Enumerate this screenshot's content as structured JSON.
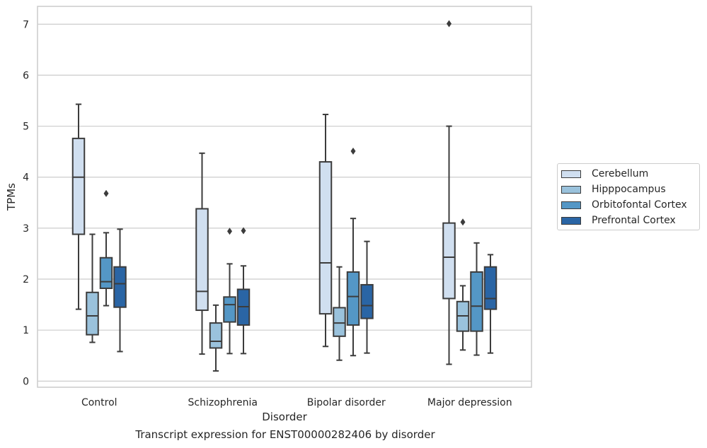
{
  "chart_data": {
    "type": "box",
    "xlabel": "Disorder",
    "ylabel": "TPMs",
    "categories": [
      "Control",
      "Schizophrenia",
      "Bipolar disorder",
      "Major depression"
    ],
    "ylim": [
      -0.12,
      7.35
    ],
    "yticks": [
      0,
      1,
      2,
      3,
      4,
      5,
      6,
      7
    ],
    "grid": true,
    "legend_position": "right",
    "series": [
      {
        "name": "Cerebellum",
        "color": "#d0dff0",
        "boxes": [
          {
            "whislo": 1.41,
            "q1": 2.88,
            "med": 4.0,
            "q3": 4.76,
            "whishi": 5.43,
            "fliers": []
          },
          {
            "whislo": 0.53,
            "q1": 1.39,
            "med": 1.76,
            "q3": 3.38,
            "whishi": 4.47,
            "fliers": []
          },
          {
            "whislo": 0.68,
            "q1": 1.32,
            "med": 2.32,
            "q3": 4.3,
            "whishi": 5.23,
            "fliers": []
          },
          {
            "whislo": 0.33,
            "q1": 1.62,
            "med": 2.43,
            "q3": 3.1,
            "whishi": 5.0,
            "fliers": [
              7.01
            ]
          }
        ]
      },
      {
        "name": "Hipppocampus",
        "color": "#9ac2dc",
        "boxes": [
          {
            "whislo": 0.76,
            "q1": 0.91,
            "med": 1.28,
            "q3": 1.74,
            "whishi": 2.88,
            "fliers": []
          },
          {
            "whislo": 0.2,
            "q1": 0.65,
            "med": 0.78,
            "q3": 1.14,
            "whishi": 1.49,
            "fliers": []
          },
          {
            "whislo": 0.41,
            "q1": 0.88,
            "med": 1.14,
            "q3": 1.44,
            "whishi": 2.24,
            "fliers": []
          },
          {
            "whislo": 0.61,
            "q1": 0.98,
            "med": 1.28,
            "q3": 1.56,
            "whishi": 1.87,
            "fliers": [
              3.12
            ]
          }
        ]
      },
      {
        "name": "Orbitofontal Cortex",
        "color": "#5497c6",
        "boxes": [
          {
            "whislo": 1.48,
            "q1": 1.82,
            "med": 1.95,
            "q3": 2.42,
            "whishi": 2.91,
            "fliers": [
              3.68
            ]
          },
          {
            "whislo": 0.54,
            "q1": 1.16,
            "med": 1.5,
            "q3": 1.65,
            "whishi": 2.3,
            "fliers": [
              2.94
            ]
          },
          {
            "whislo": 0.5,
            "q1": 1.1,
            "med": 1.66,
            "q3": 2.14,
            "whishi": 3.19,
            "fliers": [
              4.51
            ]
          },
          {
            "whislo": 0.51,
            "q1": 0.98,
            "med": 1.47,
            "q3": 2.14,
            "whishi": 2.71,
            "fliers": []
          }
        ]
      },
      {
        "name": "Prefrontal Cortex",
        "color": "#2a65a5",
        "boxes": [
          {
            "whislo": 0.58,
            "q1": 1.45,
            "med": 1.91,
            "q3": 2.24,
            "whishi": 2.98,
            "fliers": []
          },
          {
            "whislo": 0.54,
            "q1": 1.1,
            "med": 1.46,
            "q3": 1.8,
            "whishi": 2.26,
            "fliers": [
              2.95
            ]
          },
          {
            "whislo": 0.55,
            "q1": 1.23,
            "med": 1.48,
            "q3": 1.89,
            "whishi": 2.74,
            "fliers": []
          },
          {
            "whislo": 0.55,
            "q1": 1.41,
            "med": 1.62,
            "q3": 2.24,
            "whishi": 2.48,
            "fliers": []
          }
        ]
      }
    ]
  },
  "caption": "Transcript expression for ENST00000282406 by disorder"
}
